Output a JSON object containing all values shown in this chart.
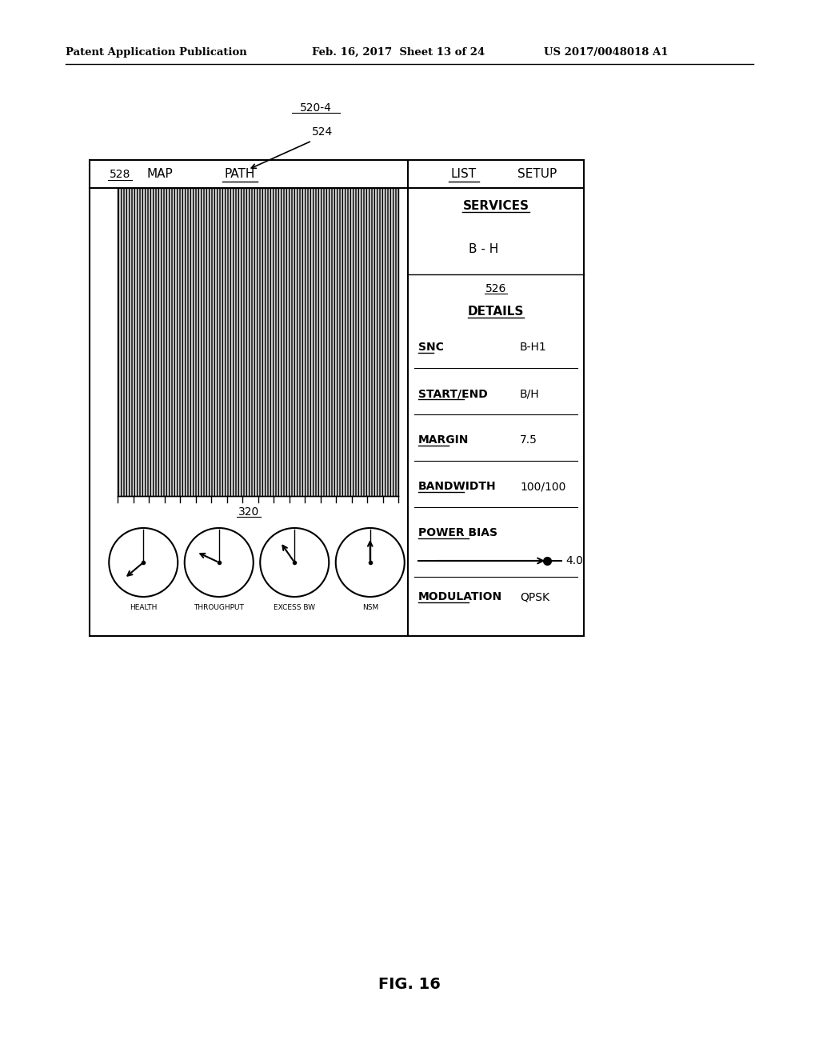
{
  "header_left": "Patent Application Publication",
  "header_mid": "Feb. 16, 2017  Sheet 13 of 24",
  "header_right": "US 2017/0048018 A1",
  "fig_label": "FIG. 16",
  "label_520": "520-4",
  "label_524": "524",
  "label_528": "528",
  "label_320": "320",
  "label_526": "526",
  "tab_map": "MAP",
  "tab_path": "PATH",
  "tab_list": "LIST",
  "tab_setup": "SETUP",
  "services_label": "SERVICES",
  "services_value": "B - H",
  "details_label": "DETAILS",
  "snc_label": "SNC",
  "snc_value": "B-H1",
  "startend_label": "START/END",
  "startend_value": "B/H",
  "margin_label": "MARGIN",
  "margin_value": "7.5",
  "bandwidth_label": "BANDWIDTH",
  "bandwidth_value": "100/100",
  "powerbias_label": "POWER BIAS",
  "powerbias_value": "4.0",
  "modulation_label": "MODULATION",
  "modulation_value": "QPSK",
  "gauge_labels": [
    "HEALTH",
    "THROUGHPUT",
    "EXCESS BW",
    "NSM"
  ],
  "bg_color": "#ffffff",
  "fg_color": "#000000"
}
